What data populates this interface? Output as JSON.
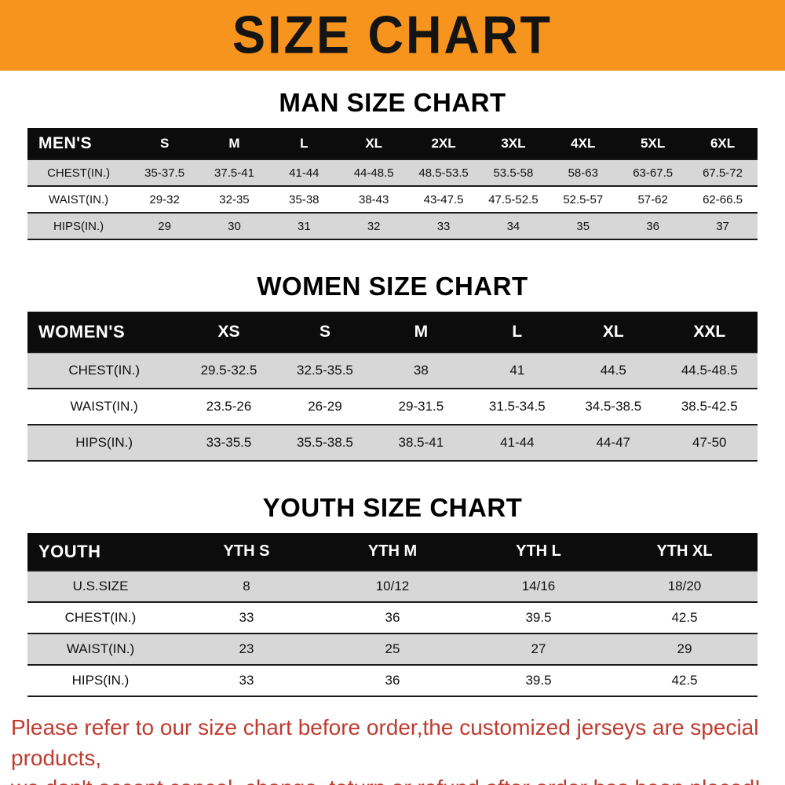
{
  "banner": {
    "title": "SIZE CHART"
  },
  "colors": {
    "banner_bg": "#f7941e",
    "header_row_bg": "#0c0c0c",
    "stripe_gray": "#d7d7d7",
    "disclaimer_text": "#bf3b2f"
  },
  "chart_data": [
    {
      "type": "table",
      "id": "men",
      "heading": "MAN SIZE CHART",
      "corner_label": "MEN'S",
      "columns": [
        "S",
        "M",
        "L",
        "XL",
        "2XL",
        "3XL",
        "4XL",
        "5XL",
        "6XL"
      ],
      "rows": [
        {
          "label": "CHEST(IN.)",
          "values": [
            "35-37.5",
            "37.5-41",
            "41-44",
            "44-48.5",
            "48.5-53.5",
            "53.5-58",
            "58-63",
            "63-67.5",
            "67.5-72"
          ]
        },
        {
          "label": "WAIST(IN.)",
          "values": [
            "29-32",
            "32-35",
            "35-38",
            "38-43",
            "43-47.5",
            "47.5-52.5",
            "52.5-57",
            "57-62",
            "62-66.5"
          ]
        },
        {
          "label": "HIPS(IN.)",
          "values": [
            "29",
            "30",
            "31",
            "32",
            "33",
            "34",
            "35",
            "36",
            "37"
          ]
        }
      ]
    },
    {
      "type": "table",
      "id": "women",
      "heading": "WOMEN SIZE CHART",
      "corner_label": "WOMEN'S",
      "columns": [
        "XS",
        "S",
        "M",
        "L",
        "XL",
        "XXL"
      ],
      "rows": [
        {
          "label": "CHEST(IN.)",
          "values": [
            "29.5-32.5",
            "32.5-35.5",
            "38",
            "41",
            "44.5",
            "44.5-48.5"
          ]
        },
        {
          "label": "WAIST(IN.)",
          "values": [
            "23.5-26",
            "26-29",
            "29-31.5",
            "31.5-34.5",
            "34.5-38.5",
            "38.5-42.5"
          ]
        },
        {
          "label": "HIPS(IN.)",
          "values": [
            "33-35.5",
            "35.5-38.5",
            "38.5-41",
            "41-44",
            "44-47",
            "47-50"
          ]
        }
      ]
    },
    {
      "type": "table",
      "id": "youth",
      "heading": "YOUTH SIZE CHART",
      "corner_label": "YOUTH",
      "columns": [
        "YTH S",
        "YTH M",
        "YTH L",
        "YTH XL"
      ],
      "rows": [
        {
          "label": "U.S.SIZE",
          "values": [
            "8",
            "10/12",
            "14/16",
            "18/20"
          ]
        },
        {
          "label": "CHEST(IN.)",
          "values": [
            "33",
            "36",
            "39.5",
            "42.5"
          ]
        },
        {
          "label": "WAIST(IN.)",
          "values": [
            "23",
            "25",
            "27",
            "29"
          ]
        },
        {
          "label": "HIPS(IN.)",
          "values": [
            "33",
            "36",
            "39.5",
            "42.5"
          ]
        }
      ]
    }
  ],
  "disclaimer": {
    "line1": "Please refer to our size chart before order,the customized jerseys are special products,",
    "line2": "we don't accept cancel, change, teturn or refund after order has been placed!"
  }
}
